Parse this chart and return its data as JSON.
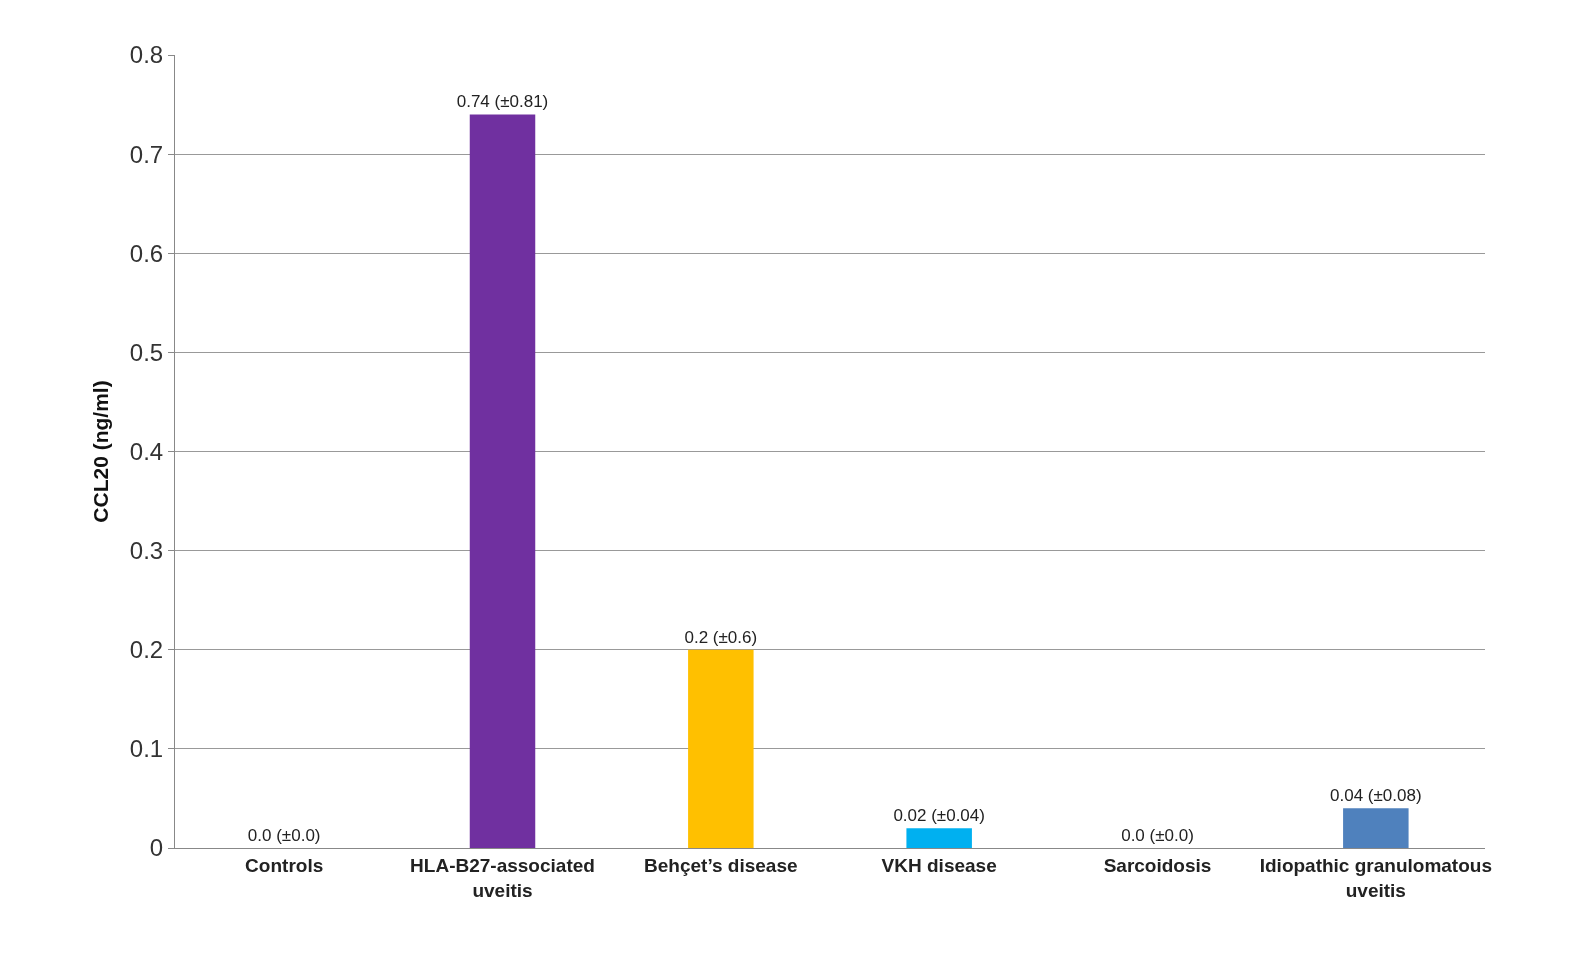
{
  "chart_data": {
    "type": "bar",
    "ylabel": "CCL20 (ng/ml)",
    "categories": [
      "Controls",
      "HLA-B27-associated uveitis",
      "Behçet’s disease",
      "VKH disease",
      "Sarcoidosis",
      "Idiopathic granulomatous uveitis"
    ],
    "values": [
      0,
      0.74,
      0.2,
      0.02,
      0,
      0.04
    ],
    "value_labels": [
      "0.0 (±0.0)",
      "0.74 (±0.81)",
      "0.2 (±0.6)",
      "0.02 (±0.04)",
      "0.0 (±0.0)",
      "0.04 (±0.08)"
    ],
    "colors": [
      "#4f81bd",
      "#7030a0",
      "#ffc000",
      "#00b0f0",
      "#4f81bd",
      "#4f81bd"
    ],
    "ylim": [
      0,
      0.8
    ],
    "yticks": [
      0,
      0.1,
      0.2,
      0.3,
      0.4,
      0.5,
      0.6,
      0.7,
      0.8
    ],
    "grid": "y"
  }
}
